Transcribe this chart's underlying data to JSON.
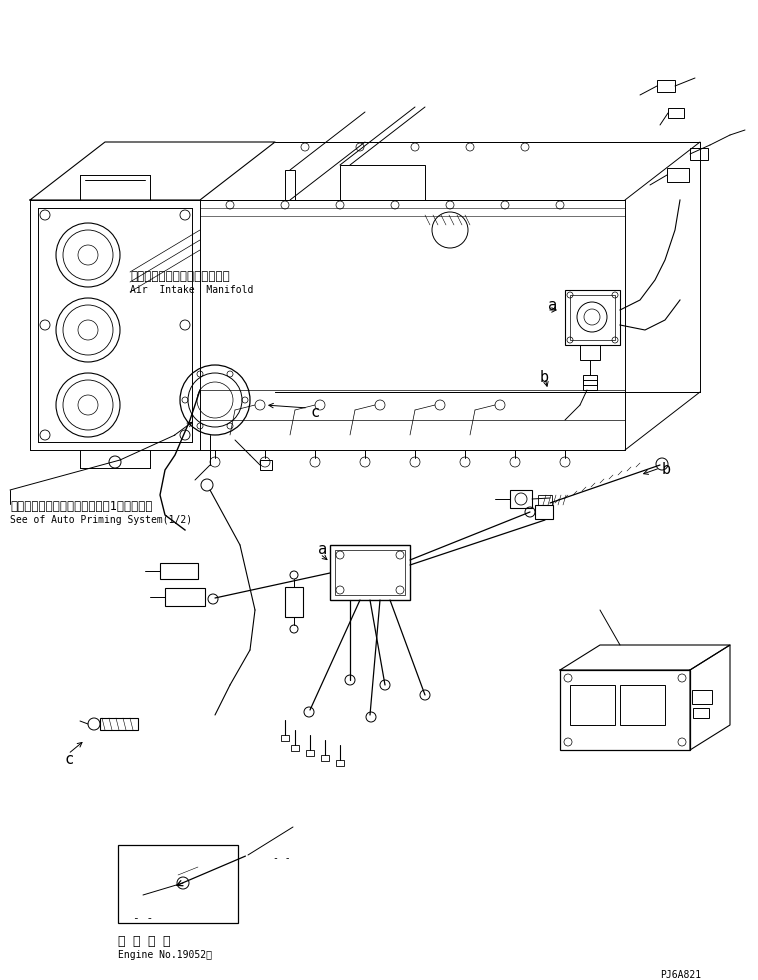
{
  "bg_color": "#ffffff",
  "line_color": "#000000",
  "fig_width": 7.58,
  "fig_height": 9.8,
  "dpi": 100,
  "label_a1": "a",
  "label_b1": "b",
  "label_c1": "c",
  "label_a2": "a",
  "label_b2": "b",
  "label_c2": "c",
  "jp_label1": "エアーインテークマニホールド",
  "en_label1": "Air  Intake  Manifold",
  "jp_label2": "オートプライミングシステム（1／２）参照",
  "en_label2": "See of Auto Priming System(1/2)",
  "jp_label3": "適 用 号 機",
  "en_label3": "Engine No.19052～",
  "part_number": "PJ6A821",
  "font_size_small": 7,
  "font_size_medium": 8,
  "font_size_jp": 8.5
}
